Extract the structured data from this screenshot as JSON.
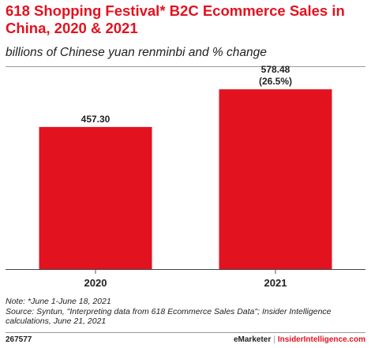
{
  "header": {
    "title": "618 Shopping Festival* B2C Ecommerce Sales in China, 2020 & 2021",
    "subtitle": "billions of Chinese yuan renminbi and % change"
  },
  "chart_data": {
    "type": "bar",
    "categories": [
      "2020",
      "2021"
    ],
    "values": [
      457.3,
      578.48
    ],
    "value_labels": [
      "457.30",
      "578.48"
    ],
    "change_labels": [
      "",
      "(26.5%)"
    ],
    "title": "618 Shopping Festival* B2C Ecommerce Sales in China, 2020 & 2021",
    "subtitle": "billions of Chinese yuan renminbi and % change",
    "xlabel": "",
    "ylabel": "",
    "ylim": [
      0,
      650
    ],
    "grid": false,
    "bar_color": "#e3121f"
  },
  "notes": {
    "note": "Note: *June 1-June 18, 2021",
    "source": "Source: Syntun, \"Interpreting data from 618 Ecommerce Sales Data\"; Insider Intelligence calculations, June 21, 2021"
  },
  "footer": {
    "chart_id": "267577",
    "brand_primary": "eMarketer",
    "brand_separator": "|",
    "brand_secondary": "InsiderIntelligence.com"
  },
  "colors": {
    "accent": "#e3121f",
    "text": "#222222",
    "rule": "#9a9a9a"
  }
}
